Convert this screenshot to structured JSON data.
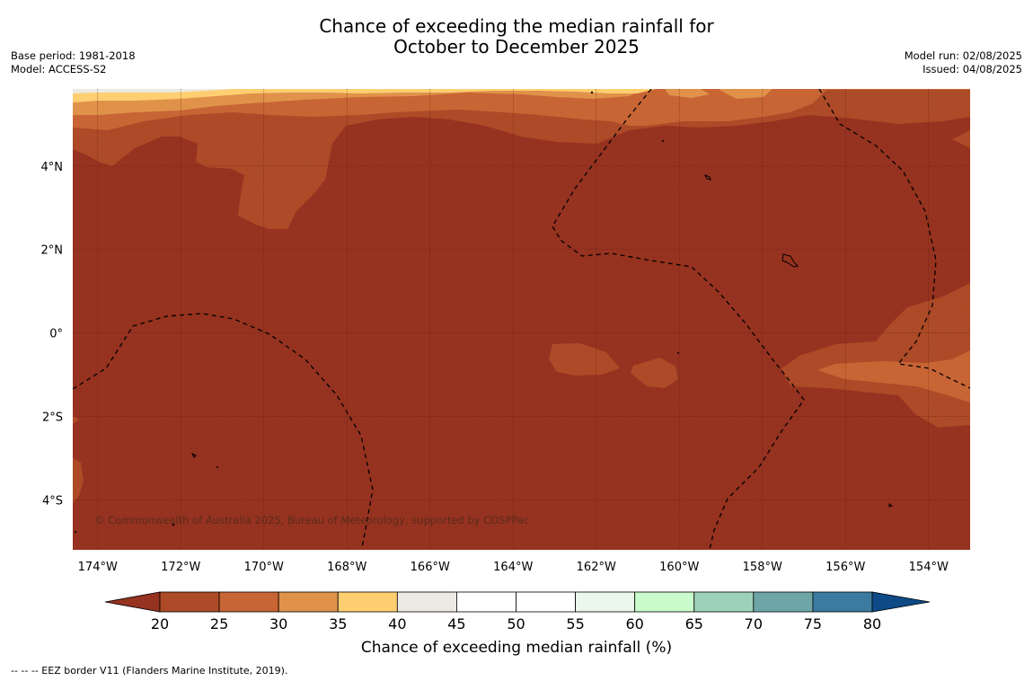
{
  "title": {
    "line1": "Chance of exceeding the median rainfall for",
    "line2": "October to December 2025"
  },
  "meta": {
    "base_period": "Base period: 1981-2018",
    "model": "Model: ACCESS-S2",
    "model_run": "Model run: 02/08/2025",
    "issued": "Issued: 04/08/2025"
  },
  "map": {
    "lon_range": [
      -174.6,
      -153.0
    ],
    "lat_range": [
      -5.2,
      5.85
    ],
    "lon_ticks": [
      {
        "value": -174,
        "label": "174°W"
      },
      {
        "value": -172,
        "label": "172°W"
      },
      {
        "value": -170,
        "label": "170°W"
      },
      {
        "value": -168,
        "label": "168°W"
      },
      {
        "value": -166,
        "label": "166°W"
      },
      {
        "value": -164,
        "label": "164°W"
      },
      {
        "value": -162,
        "label": "162°W"
      },
      {
        "value": -160,
        "label": "160°W"
      },
      {
        "value": -158,
        "label": "158°W"
      },
      {
        "value": -156,
        "label": "156°W"
      },
      {
        "value": -154,
        "label": "154°W"
      }
    ],
    "lat_ticks": [
      {
        "value": 4,
        "label": "4°N"
      },
      {
        "value": 2,
        "label": "2°N"
      },
      {
        "value": 0,
        "label": "0°"
      },
      {
        "value": -2,
        "label": "2°S"
      },
      {
        "value": -4,
        "label": "4°S"
      }
    ],
    "background_category": "< 20",
    "copyright": "© Commonwealth of Australia 2025, Bureau of Meteorology, supported by COSPPac"
  },
  "colorbar": {
    "title": "Chance of exceeding median rainfall (%)",
    "ticks": [
      "20",
      "25",
      "30",
      "35",
      "40",
      "45",
      "50",
      "55",
      "60",
      "65",
      "70",
      "75",
      "80"
    ],
    "under_color": "#963220",
    "over_color": "#0d4a86",
    "bins": [
      {
        "range": "20-25",
        "color": "#ad4a27"
      },
      {
        "range": "25-30",
        "color": "#c86535"
      },
      {
        "range": "30-35",
        "color": "#e0924a"
      },
      {
        "range": "35-40",
        "color": "#fdcf71"
      },
      {
        "range": "40-45",
        "color": "#edeae4"
      },
      {
        "range": "45-50",
        "color": "#ffffff"
      },
      {
        "range": "50-55",
        "color": "#ffffff"
      },
      {
        "range": "55-60",
        "color": "#eaf7ea"
      },
      {
        "range": "60-65",
        "color": "#c9fbcc"
      },
      {
        "range": "65-70",
        "color": "#9ed1b9"
      },
      {
        "range": "70-75",
        "color": "#6ea6a8"
      },
      {
        "range": "75-80",
        "color": "#3b7b9f"
      }
    ]
  },
  "footnote": "-- -- -- EEZ border V11 (Flanders Marine Institute, 2019)."
}
